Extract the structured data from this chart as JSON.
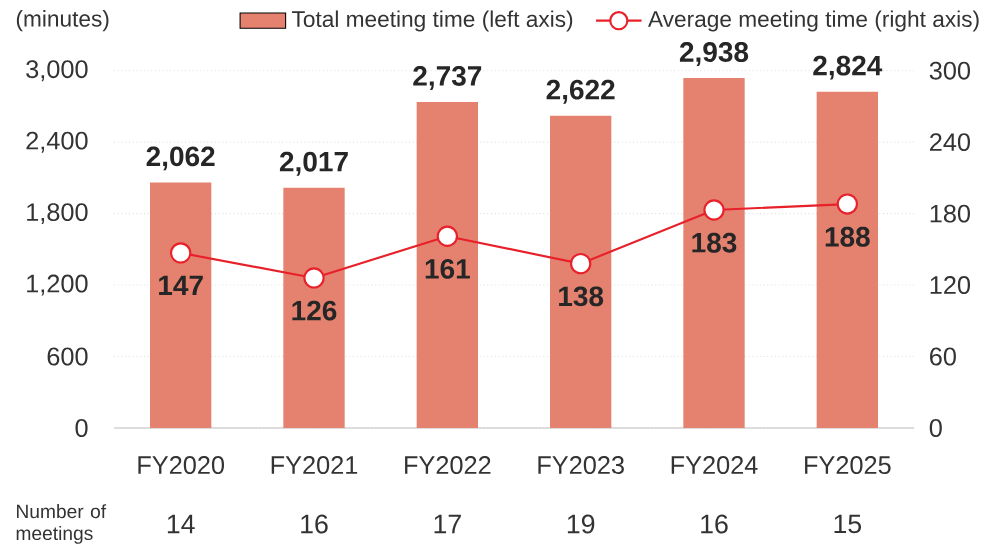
{
  "chart_data": {
    "type": "bar",
    "ylabel": "(minutes)",
    "categories": [
      "FY2020",
      "FY2021",
      "FY2022",
      "FY2023",
      "FY2024",
      "FY2025"
    ],
    "series": [
      {
        "name": "Total meeting time (left axis)",
        "color": "#e5826f",
        "values": [
          2062,
          2017,
          2737,
          2622,
          2938,
          2824
        ],
        "value_labels": [
          "2,062",
          "2,017",
          "2,737",
          "2,622",
          "2,938",
          "2,824"
        ]
      },
      {
        "name": "Average meeting time (right axis)",
        "type": "line",
        "axis": "y2",
        "color": "#e8202a",
        "marker": "circle",
        "values": [
          147,
          126,
          161,
          138,
          183,
          188
        ]
      }
    ],
    "ylim": [
      0,
      3000
    ],
    "yticks": [
      0,
      600,
      {
        "value": 1200,
        "label": "1,200"
      },
      {
        "value": 1800,
        "label": "1,800"
      },
      {
        "value": 2400,
        "label": "2,400"
      },
      {
        "value": 3000,
        "label": "3,000"
      }
    ],
    "y2lim": [
      0,
      300
    ],
    "y2ticks": [
      0,
      60,
      120,
      180,
      240,
      300
    ],
    "grid": "y",
    "legend": "top",
    "data_labels": true,
    "annotations": [
      "Number of meetings",
      "14",
      "16",
      "17",
      "19",
      "16",
      "15"
    ]
  }
}
